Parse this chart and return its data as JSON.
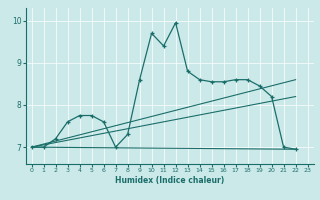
{
  "xlabel": "Humidex (Indice chaleur)",
  "xlim": [
    -0.5,
    23.5
  ],
  "ylim": [
    6.6,
    10.3
  ],
  "yticks": [
    7,
    8,
    9,
    10
  ],
  "xticks": [
    0,
    1,
    2,
    3,
    4,
    5,
    6,
    7,
    8,
    9,
    10,
    11,
    12,
    13,
    14,
    15,
    16,
    17,
    18,
    19,
    20,
    21,
    22,
    23
  ],
  "bg_color": "#cce9e9",
  "line_color": "#1a6e6a",
  "main_series": {
    "x": [
      0,
      1,
      2,
      3,
      4,
      5,
      6,
      7,
      8,
      9,
      10,
      11,
      12,
      13,
      14,
      15,
      16,
      17,
      18,
      19,
      20,
      21,
      22
    ],
    "y": [
      7.0,
      7.0,
      7.2,
      7.6,
      7.75,
      7.75,
      7.6,
      7.0,
      7.3,
      8.6,
      9.7,
      9.4,
      9.95,
      8.8,
      8.6,
      8.55,
      8.55,
      8.6,
      8.6,
      8.45,
      8.2,
      7.0,
      6.95
    ]
  },
  "trend_lines": [
    {
      "x": [
        0,
        22
      ],
      "y": [
        7.0,
        8.6
      ]
    },
    {
      "x": [
        0,
        22
      ],
      "y": [
        7.0,
        8.2
      ]
    },
    {
      "x": [
        0,
        22
      ],
      "y": [
        7.0,
        6.95
      ]
    }
  ]
}
